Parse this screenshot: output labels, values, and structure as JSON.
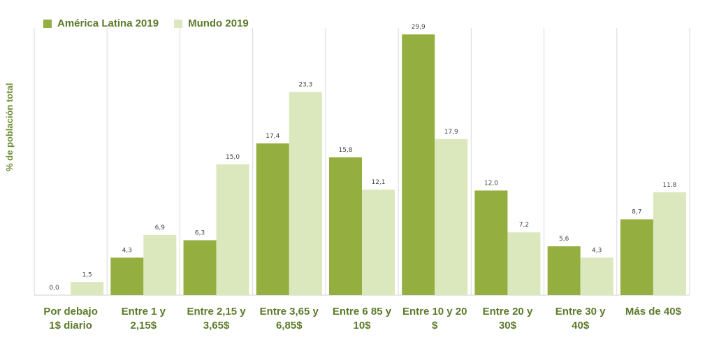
{
  "chart_data": {
    "type": "bar",
    "ylabel": "% de población total",
    "categories": [
      [
        "Por debajo",
        "1$  diario"
      ],
      [
        "Entre 1 y",
        "2,15$"
      ],
      [
        "Entre 2,15 y",
        "3,65$"
      ],
      [
        "Entre 3,65 y",
        "6,85$"
      ],
      [
        "Entre 6 85 y",
        "10$"
      ],
      [
        "Entre 10 y 20",
        "$"
      ],
      [
        "Entre 20 y",
        "30$"
      ],
      [
        "Entre 30 y",
        "40$"
      ],
      [
        "Más de 40$"
      ]
    ],
    "series": [
      {
        "name": "América Latina 2019",
        "color": "#94ae3f",
        "values": [
          0.0,
          4.3,
          6.3,
          17.4,
          15.8,
          29.9,
          12.0,
          5.6,
          8.7
        ],
        "labels": [
          "0,0",
          "4,3",
          "6,3",
          "17,4",
          "15,8",
          "29,9",
          "12,0",
          "5,6",
          "8,7"
        ]
      },
      {
        "name": "Mundo 2019",
        "color": "#dbe7bc",
        "values": [
          1.5,
          6.9,
          15.0,
          23.3,
          12.1,
          17.9,
          7.2,
          4.3,
          11.8
        ],
        "labels": [
          "1,5",
          "6,9",
          "15,0",
          "23,3",
          "12,1",
          "17,9",
          "7,2",
          "4,3",
          "11,8"
        ]
      }
    ],
    "ylim": [
      0,
      30
    ],
    "grid": "vertical separators",
    "legend": "top-left"
  }
}
